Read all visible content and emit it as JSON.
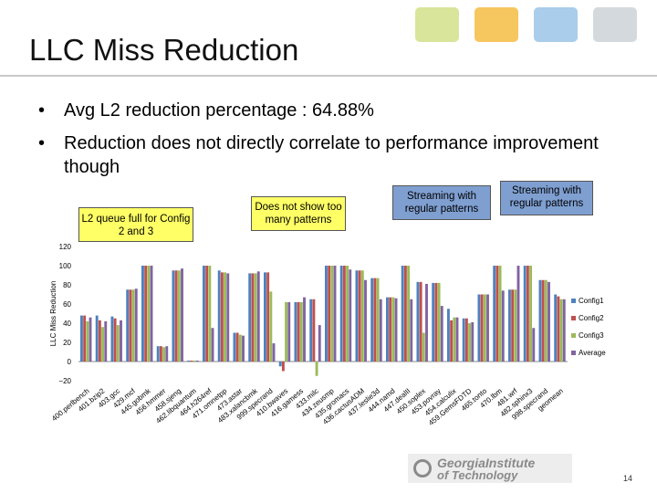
{
  "slide": {
    "title": "LLC Miss Reduction",
    "bullets": [
      "Avg L2 reduction percentage : 64.88%",
      "Reduction does not directly correlate to performance improvement though"
    ],
    "bullet_symbol": "•",
    "page_number": "14"
  },
  "callouts": {
    "l2_queue": "L2 queue full for Config 2 and 3",
    "no_patterns": "Does not show too many patterns",
    "streaming_1": "Streaming with regular patterns",
    "streaming_2": "Streaming with regular patterns"
  },
  "logo": {
    "line1": "GeorgiaInstitute",
    "line2": "of Technology"
  },
  "colors": {
    "callout_yellow": "#ffff66",
    "callout_blue": "#7f9fd1",
    "deco": [
      "#d8e59b",
      "#f6c65f",
      "#a9cdea",
      "#d4d9dd"
    ]
  },
  "chart_data": {
    "type": "bar",
    "title": "",
    "ylabel": "LLC Miss Reduction",
    "xlabel": "",
    "ylim": [
      -20,
      120
    ],
    "yticks": [
      -20,
      0,
      20,
      40,
      60,
      80,
      100,
      120
    ],
    "grid": false,
    "legend_position": "right",
    "categories": [
      "400.perlbench",
      "401.bzip2",
      "403.gcc",
      "429.mcf",
      "445.gobmk",
      "456.hmmer",
      "458.sjeng",
      "462.libquantum",
      "464.h264ref",
      "471.omnetpp",
      "473.astar",
      "483.xalancbmk",
      "999.specrand",
      "410.bwaves",
      "416.gamess",
      "433.milc",
      "434.zeusmp",
      "435.gromacs",
      "436.cactusADM",
      "437.leslie3d",
      "444.namd",
      "447.dealII",
      "450.soplex",
      "453.povray",
      "454.calculix",
      "459.GemsFDTD",
      "465.tonto",
      "470.lbm",
      "481.wrf",
      "482.sphinx3",
      "998.specrand",
      "geomean"
    ],
    "series": [
      {
        "name": "Config1",
        "color": "#4f81bd",
        "values": [
          48,
          48,
          47,
          75,
          100,
          16,
          95,
          1,
          100,
          95,
          30,
          92,
          93,
          -5,
          62,
          65,
          100,
          100,
          95,
          87,
          67,
          100,
          83,
          82,
          55,
          45,
          70,
          100,
          75,
          100,
          85,
          70
        ]
      },
      {
        "name": "Config2",
        "color": "#c0504d",
        "values": [
          48,
          43,
          45,
          75,
          100,
          16,
          95,
          1,
          100,
          93,
          30,
          92,
          93,
          -10,
          62,
          65,
          100,
          100,
          95,
          87,
          67,
          100,
          83,
          82,
          43,
          45,
          70,
          100,
          75,
          100,
          85,
          68
        ]
      },
      {
        "name": "Config3",
        "color": "#9bbb59",
        "values": [
          42,
          36,
          38,
          75,
          100,
          15,
          95,
          1,
          100,
          93,
          28,
          92,
          73,
          62,
          62,
          -15,
          100,
          100,
          95,
          87,
          67,
          100,
          30,
          82,
          46,
          40,
          70,
          100,
          75,
          100,
          85,
          65
        ]
      },
      {
        "name": "Average",
        "color": "#8064a2",
        "values": [
          46,
          42,
          43,
          76,
          100,
          16,
          97,
          1,
          35,
          92,
          27,
          94,
          19,
          62,
          67,
          38,
          100,
          96,
          85,
          65,
          66,
          65,
          81,
          58,
          46,
          41,
          70,
          74,
          100,
          35,
          83,
          65
        ]
      }
    ]
  }
}
